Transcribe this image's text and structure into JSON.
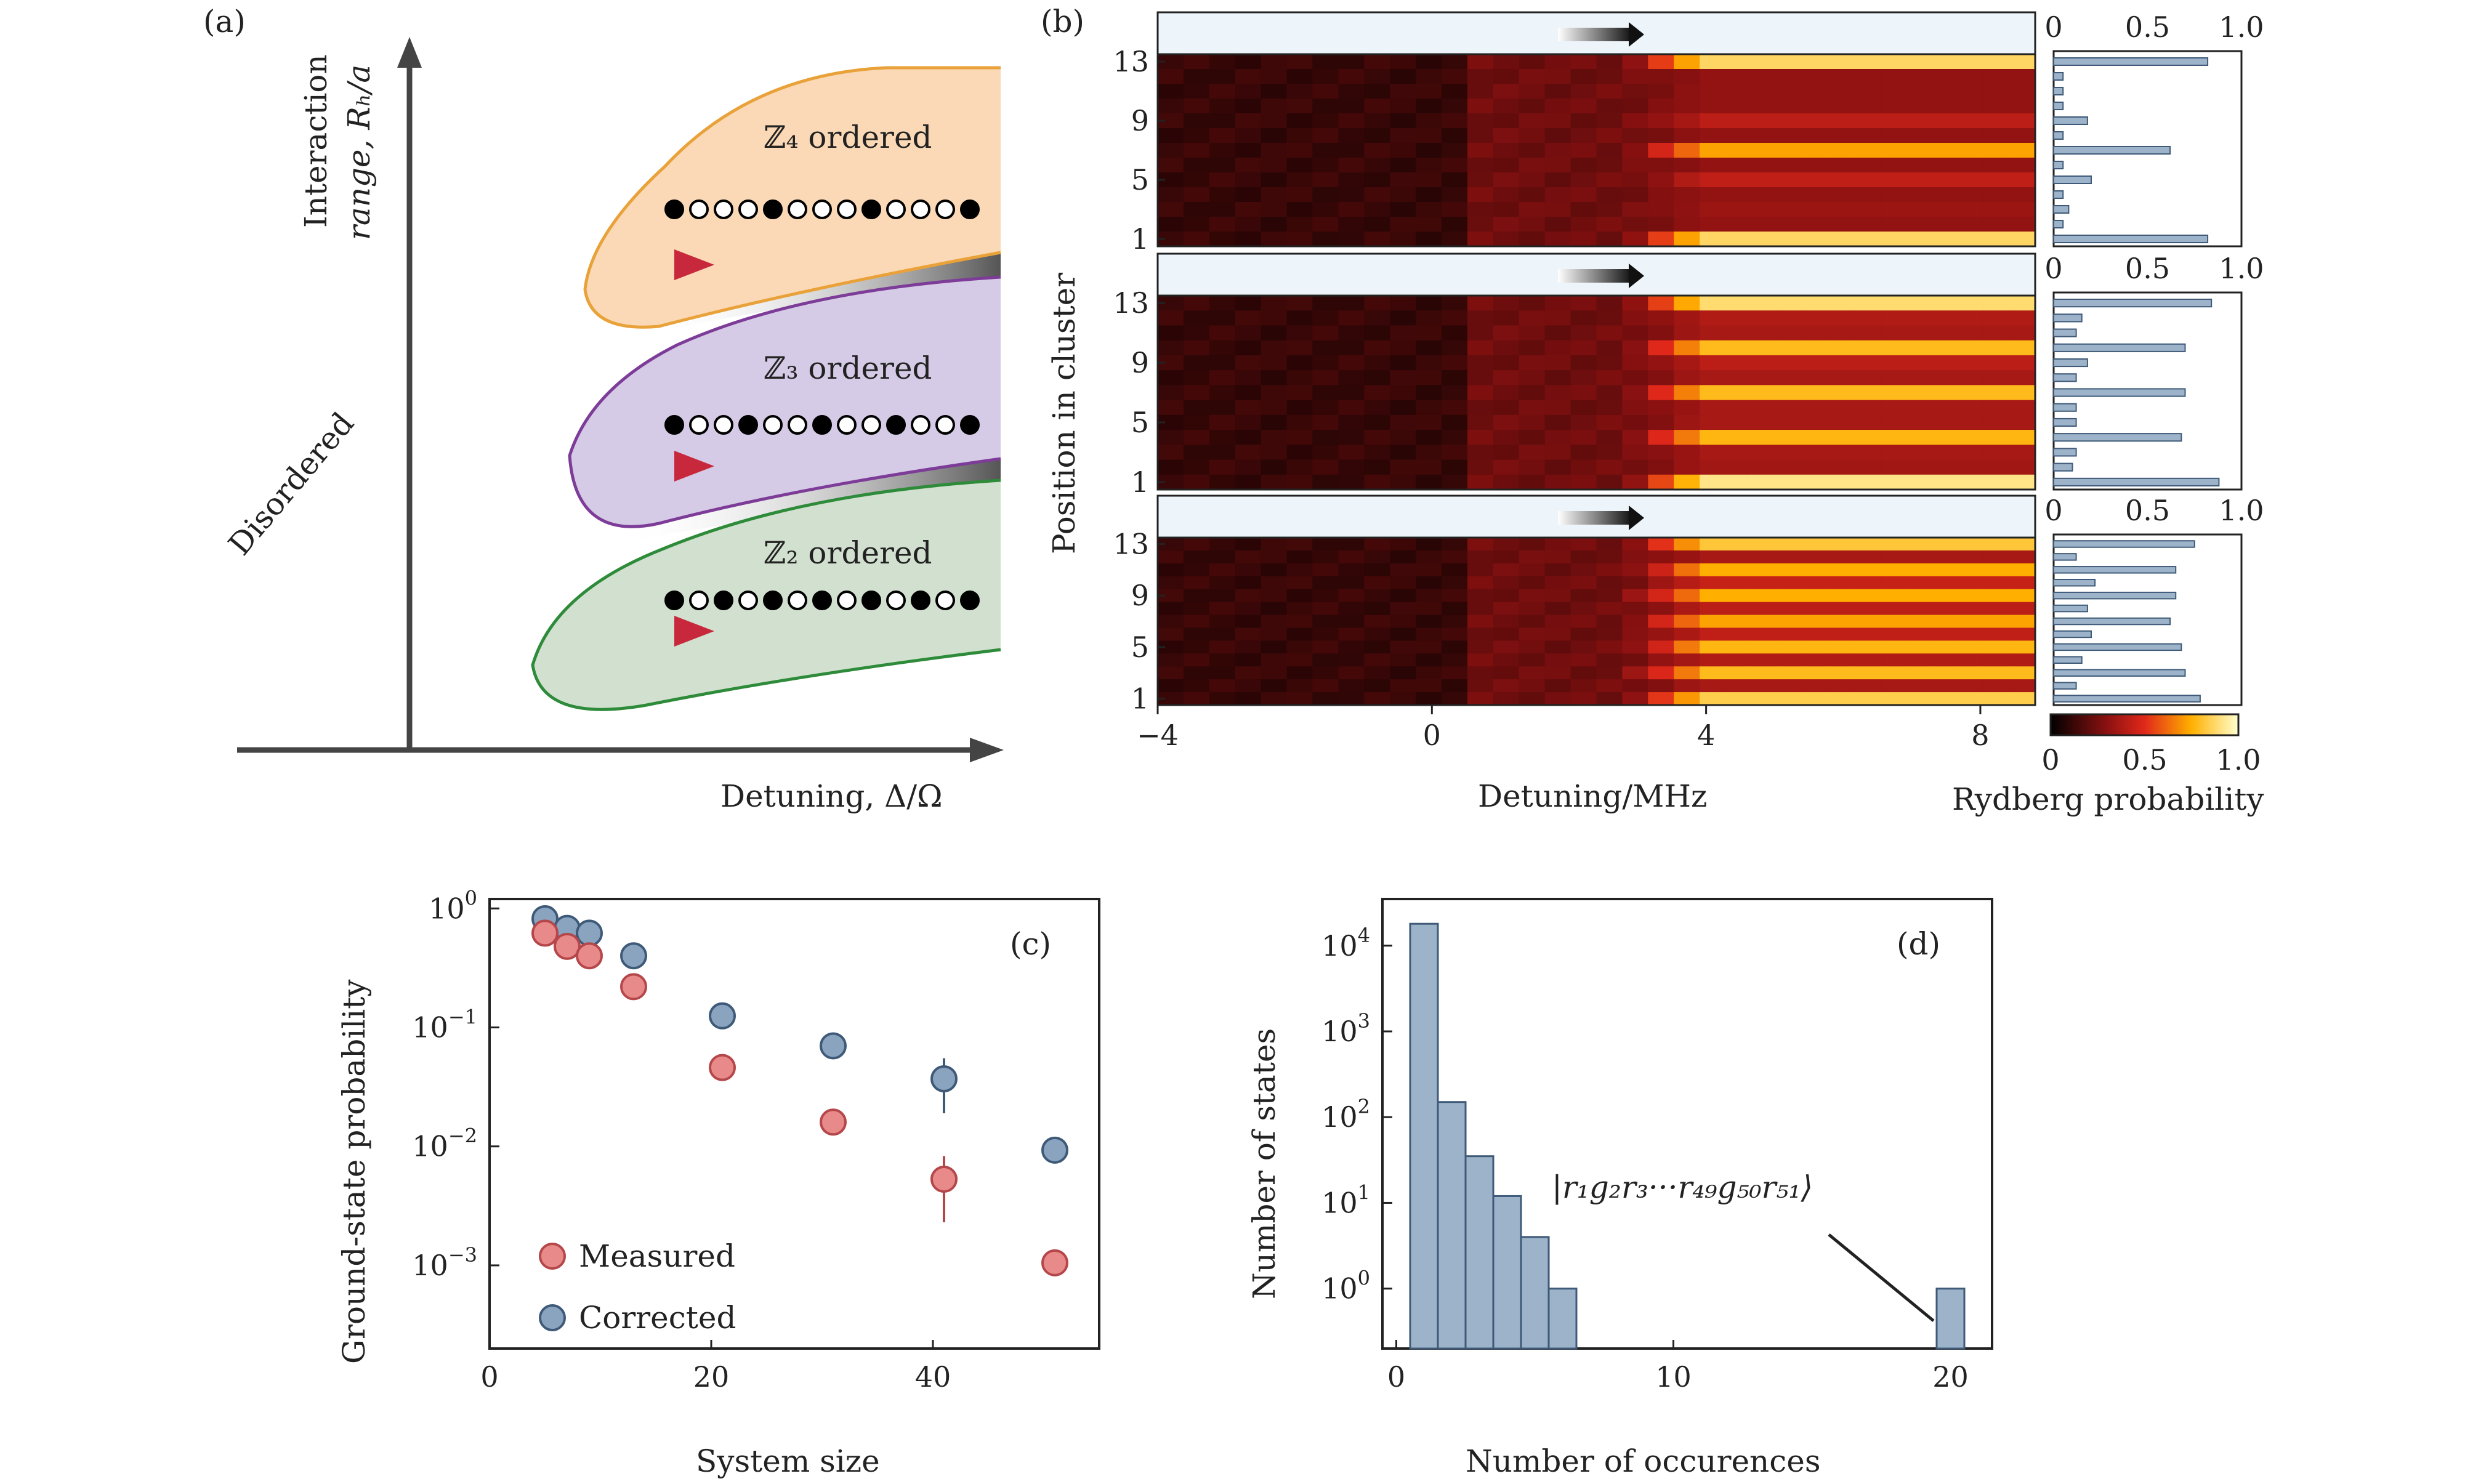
{
  "panels": {
    "a": {
      "label": "(a)",
      "ylabel_line1": "Interaction",
      "ylabel_line2": "range, Rₕ/a",
      "xlabel": "Detuning, Δ/Ω",
      "disordered": "Disordered",
      "phases": [
        {
          "name": "ℤ₄ ordered",
          "fill": "#fbd9b6",
          "edge": "#e9a23a",
          "pattern": [
            1,
            0,
            0,
            0,
            1,
            0,
            0,
            0,
            1,
            0,
            0,
            0,
            1
          ]
        },
        {
          "name": "ℤ₃ ordered",
          "fill": "#d6cbe6",
          "edge": "#7d3c98",
          "pattern": [
            1,
            0,
            0,
            1,
            0,
            0,
            1,
            0,
            0,
            1,
            0,
            0,
            1
          ]
        },
        {
          "name": "ℤ₂ ordered",
          "fill": "#d2e1cf",
          "edge": "#2e8b3a",
          "pattern": [
            1,
            0,
            1,
            0,
            1,
            0,
            1,
            0,
            1,
            0,
            1,
            0,
            1
          ]
        }
      ]
    },
    "b": {
      "label": "(b)",
      "ylabel": "Position in cluster",
      "xlabel": "Detuning/MHz",
      "xticks": [
        "−4",
        "0",
        "4",
        "8"
      ],
      "yticks": [
        "13",
        "9",
        "5",
        "1"
      ],
      "bar_ticks": [
        "0",
        "0.5",
        "1.0"
      ],
      "colorbar_ticks": [
        "0",
        "0.5",
        "1.0"
      ],
      "colorbar_label": "Rydberg probability"
    },
    "c": {
      "label": "(c)",
      "ylabel": "Ground-state probability",
      "xlabel": "System size",
      "xticks": [
        "0",
        "20",
        "40"
      ],
      "legend_measured": "Measured",
      "legend_corrected": "Corrected"
    },
    "d": {
      "label": "(d)",
      "ylabel": "Number of states",
      "xlabel": "Number of occurences",
      "xticks": [
        "0",
        "10",
        "20"
      ],
      "annotation": "|r₁g₂r₃···r₄₉g₅₀r₅₁⟩"
    }
  },
  "chart_data": [
    {
      "type": "heatmap",
      "panel": "b",
      "xlim": [
        -4,
        8.8
      ],
      "ylabel": "Position in cluster",
      "xlabel": "Detuning/MHz",
      "colorbar": {
        "label": "Rydberg probability",
        "range": [
          0,
          1
        ]
      },
      "clusters": [
        {
          "order": "Z4",
          "bar_probabilities": [
            0.82,
            0.05,
            0.08,
            0.05,
            0.2,
            0.05,
            0.62,
            0.05,
            0.18,
            0.05,
            0.05,
            0.05,
            0.82
          ]
        },
        {
          "order": "Z3",
          "bar_probabilities": [
            0.88,
            0.1,
            0.12,
            0.68,
            0.12,
            0.12,
            0.7,
            0.12,
            0.18,
            0.7,
            0.12,
            0.15,
            0.84
          ]
        },
        {
          "order": "Z2",
          "bar_probabilities": [
            0.78,
            0.12,
            0.7,
            0.15,
            0.68,
            0.2,
            0.62,
            0.18,
            0.65,
            0.22,
            0.65,
            0.12,
            0.75
          ]
        }
      ]
    },
    {
      "type": "scatter",
      "panel": "c",
      "xlabel": "System size",
      "ylabel": "Ground-state probability",
      "xlim": [
        0,
        55
      ],
      "ylim": [
        0.0002,
        1.2
      ],
      "yscale": "log",
      "series": [
        {
          "name": "Measured",
          "color": "#e8898a",
          "x": [
            5,
            7,
            9,
            13,
            21,
            31,
            41,
            51
          ],
          "y": [
            0.62,
            0.48,
            0.4,
            0.22,
            0.046,
            0.016,
            0.0053,
            0.00105
          ],
          "err": [
            0,
            0,
            0,
            0,
            0,
            0,
            0.003,
            0.0002
          ]
        },
        {
          "name": "Corrected",
          "color": "#8aa4bf",
          "x": [
            5,
            7,
            9,
            13,
            21,
            31,
            41,
            51
          ],
          "y": [
            0.82,
            0.68,
            0.62,
            0.4,
            0.125,
            0.07,
            0.037,
            0.0093
          ],
          "err": [
            0,
            0,
            0,
            0,
            0,
            0,
            0.018,
            0.0015
          ]
        }
      ],
      "legend": "bottom-left"
    },
    {
      "type": "bar",
      "panel": "d",
      "xlabel": "Number of occurences",
      "ylabel": "Number of states",
      "yscale": "log",
      "xlim": [
        -0.5,
        21.5
      ],
      "ylim": [
        0.2,
        35000
      ],
      "categories": [
        1,
        2,
        3,
        4,
        5,
        6,
        20
      ],
      "values": [
        18000,
        150,
        35,
        12,
        4,
        1,
        1
      ],
      "color": "#9db3c9"
    }
  ]
}
